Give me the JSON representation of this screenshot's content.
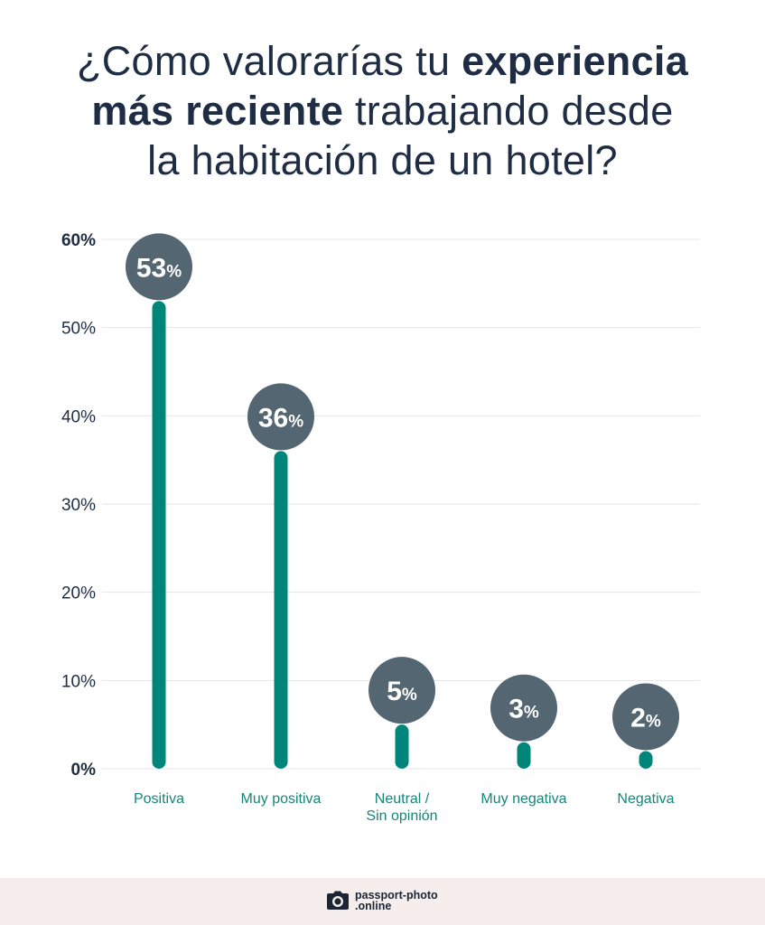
{
  "title": {
    "part1": "¿Cómo valorarías tu ",
    "bold1": "experiencia",
    "bold2": "más reciente",
    "part2": " trabajando desde",
    "line3": "la habitación de un hotel?"
  },
  "chart_data": {
    "type": "bar",
    "title": "¿Cómo valorarías tu experiencia más reciente trabajando desde la habitación de un hotel?",
    "categories": [
      [
        "Positiva"
      ],
      [
        "Muy positiva"
      ],
      [
        "Neutral /",
        "Sin opinión"
      ],
      [
        "Muy negativa"
      ],
      [
        "Negativa"
      ]
    ],
    "values": [
      53,
      36,
      5,
      3,
      2
    ],
    "value_labels": [
      {
        "num": "53",
        "unit": "%"
      },
      {
        "num": "36",
        "unit": "%"
      },
      {
        "num": "5",
        "unit": "%"
      },
      {
        "num": "3",
        "unit": "%"
      },
      {
        "num": "2",
        "unit": "%"
      }
    ],
    "ylim": [
      0,
      60
    ],
    "yticks": [
      0,
      10,
      20,
      30,
      40,
      50,
      60
    ],
    "ytick_labels": [
      "0%",
      "10%",
      "20%",
      "30%",
      "40%",
      "50%",
      "60%"
    ],
    "xlabel": "",
    "ylabel": "",
    "grid": true,
    "colors": {
      "bar": "#00857a",
      "bubble": "#546672",
      "category_text": "#16857a",
      "axis_text": "#1f2d44",
      "grid": "#e3e6e8"
    }
  },
  "footer": {
    "logo_line1": "passport-photo",
    "logo_line2": ".online"
  }
}
